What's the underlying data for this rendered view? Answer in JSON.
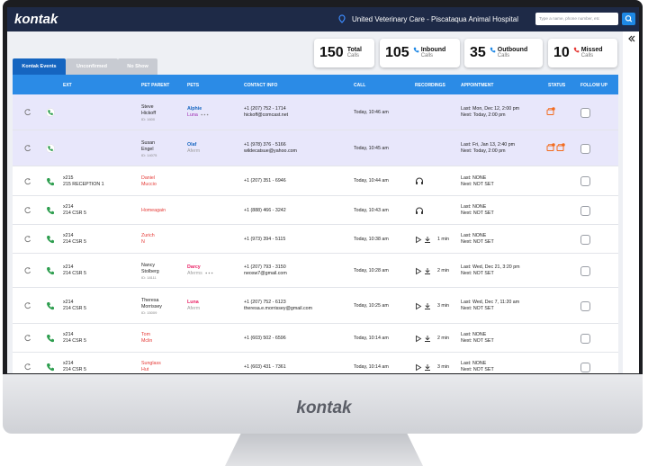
{
  "header": {
    "logo": "kontak",
    "clinic": "United Veterinary Care - Piscataqua Animal Hospital",
    "search_placeholder": "Type a name, phone number, etc"
  },
  "stats": [
    {
      "value": 150,
      "label": "Total",
      "sub": "Calls"
    },
    {
      "value": 105,
      "label": "Inbound",
      "sub": "Calls",
      "icon_color": "#1e88e5"
    },
    {
      "value": 35,
      "label": "Outbound",
      "sub": "Calls",
      "icon_color": "#1e88e5"
    },
    {
      "value": 10,
      "label": "Missed",
      "sub": "Calls",
      "icon_color": "#e53935"
    }
  ],
  "tabs": [
    "Kontak Events",
    "Unconfirmed",
    "No Show"
  ],
  "table": {
    "columns": [
      "EXT",
      "PET PARENT",
      "PETS",
      "CONTACT INFO",
      "CALL",
      "RECORDINGS",
      "APPOINTMENT",
      "STATUS",
      "FOLLOW UP"
    ],
    "rows": [
      {
        "highlighted": true,
        "ext": [],
        "parent": [
          "Steve",
          "Hickoff",
          "ID: 1600"
        ],
        "pets": [
          {
            "name": "Alphie",
            "color": "#1565c0"
          },
          {
            "name": "Luna",
            "color": "#9c27b0",
            "more": true
          }
        ],
        "contact": [
          "+1 (207) 752 - 1714",
          "hickoff@comcast.net"
        ],
        "call": "Today, 10:46 am",
        "appointment": [
          "Last: Mon, Dec 12, 2:00 pm",
          "Next: Today, 2:00 pm"
        ],
        "status_icons": 1
      },
      {
        "highlighted": true,
        "ext": [],
        "parent": [
          "Susan",
          "Engel",
          "ID: 14075"
        ],
        "pets": [
          {
            "name": "Olaf",
            "color": "#1565c0"
          },
          {
            "name": "Aferm",
            "color": "#9e9e9e"
          }
        ],
        "contact": [
          "+1 (978) 376 - 5166",
          "wildecatsue@yahoo.com"
        ],
        "call": "Today, 10:45 am",
        "appointment": [
          "Last: Fri, Jan 13, 2:40 pm",
          "Next: Today, 2:00 pm"
        ],
        "status_icons": 2
      },
      {
        "ext": [
          "x215",
          "215 RECEPTION 1"
        ],
        "parent": [
          "Daniel",
          "Muccio"
        ],
        "parent_color": "#e53935",
        "pets": [],
        "contact": [
          "+1 (207) 351 - 6946"
        ],
        "call": "Today, 10:44 am",
        "recording": {
          "kind": "listen"
        },
        "appointment": [
          "Last: NONE",
          "Next: NOT SET"
        ]
      },
      {
        "ext": [
          "x214",
          "214 CSR 5"
        ],
        "parent": [
          "Homeagain"
        ],
        "parent_color": "#e53935",
        "pets": [],
        "contact": [
          "+1 (888) 466 - 3242"
        ],
        "call": "Today, 10:43 am",
        "recording": {
          "kind": "listen"
        },
        "appointment": [
          "Last: NONE",
          "Next: NOT SET"
        ]
      },
      {
        "ext": [
          "x214",
          "214 CSR 5"
        ],
        "parent": [
          "Zurich",
          "N"
        ],
        "parent_color": "#e53935",
        "pets": [],
        "contact": [
          "+1 (973) 394 - 5115"
        ],
        "call": "Today, 10:38 am",
        "recording": {
          "kind": "play",
          "duration": "1 min"
        },
        "appointment": [
          "Last: NONE",
          "Next: NOT SET"
        ]
      },
      {
        "ext": [
          "x214",
          "214 CSR 5"
        ],
        "parent": [
          "Nancy",
          "Stolberg",
          "ID: 18111"
        ],
        "pets": [
          {
            "name": "Darcy",
            "color": "#e91e63"
          },
          {
            "name": "Aferms",
            "color": "#9e9e9e",
            "more": true
          }
        ],
        "contact": [
          "+1 (207) 793 - 3150",
          "neosw7@gmail.com"
        ],
        "call": "Today, 10:28 am",
        "recording": {
          "kind": "play",
          "duration": "2 min"
        },
        "appointment": [
          "Last: Wed, Dec 21, 3:20 pm",
          "Next: NOT SET"
        ]
      },
      {
        "ext": [
          "x214",
          "214 CSR 5"
        ],
        "parent": [
          "Theresa",
          "Morrissey",
          "ID: 15009"
        ],
        "pets": [
          {
            "name": "Luna",
            "color": "#e91e63"
          },
          {
            "name": "Aferm",
            "color": "#9e9e9e"
          }
        ],
        "contact": [
          "+1 (207) 752 - 6123",
          "theresa.e.morrissey@gmail.com"
        ],
        "call": "Today, 10:25 am",
        "recording": {
          "kind": "play",
          "duration": "3 min"
        },
        "appointment": [
          "Last: Wed, Dec 7, 11:20 am",
          "Next: NOT SET"
        ]
      },
      {
        "ext": [
          "x214",
          "214 CSR 5"
        ],
        "parent": [
          "Tom",
          "Mclin"
        ],
        "parent_color": "#e53935",
        "pets": [],
        "contact": [
          "+1 (603) 502 - 6596"
        ],
        "call": "Today, 10:14 am",
        "recording": {
          "kind": "play",
          "duration": "2 min"
        },
        "appointment": [
          "Last: NONE",
          "Next: NOT SET"
        ]
      },
      {
        "ext": [
          "x214",
          "214 CSR 5"
        ],
        "parent": [
          "Sunglass",
          "Hut"
        ],
        "parent_color": "#e53935",
        "pets": [],
        "contact": [
          "+1 (603) 431 - 7361"
        ],
        "call": "Today, 10:14 am",
        "recording": {
          "kind": "play",
          "duration": "3 min"
        },
        "appointment": [
          "Last: NONE",
          "Next: NOT SET"
        ]
      }
    ]
  },
  "monitor_logo": "kontak"
}
